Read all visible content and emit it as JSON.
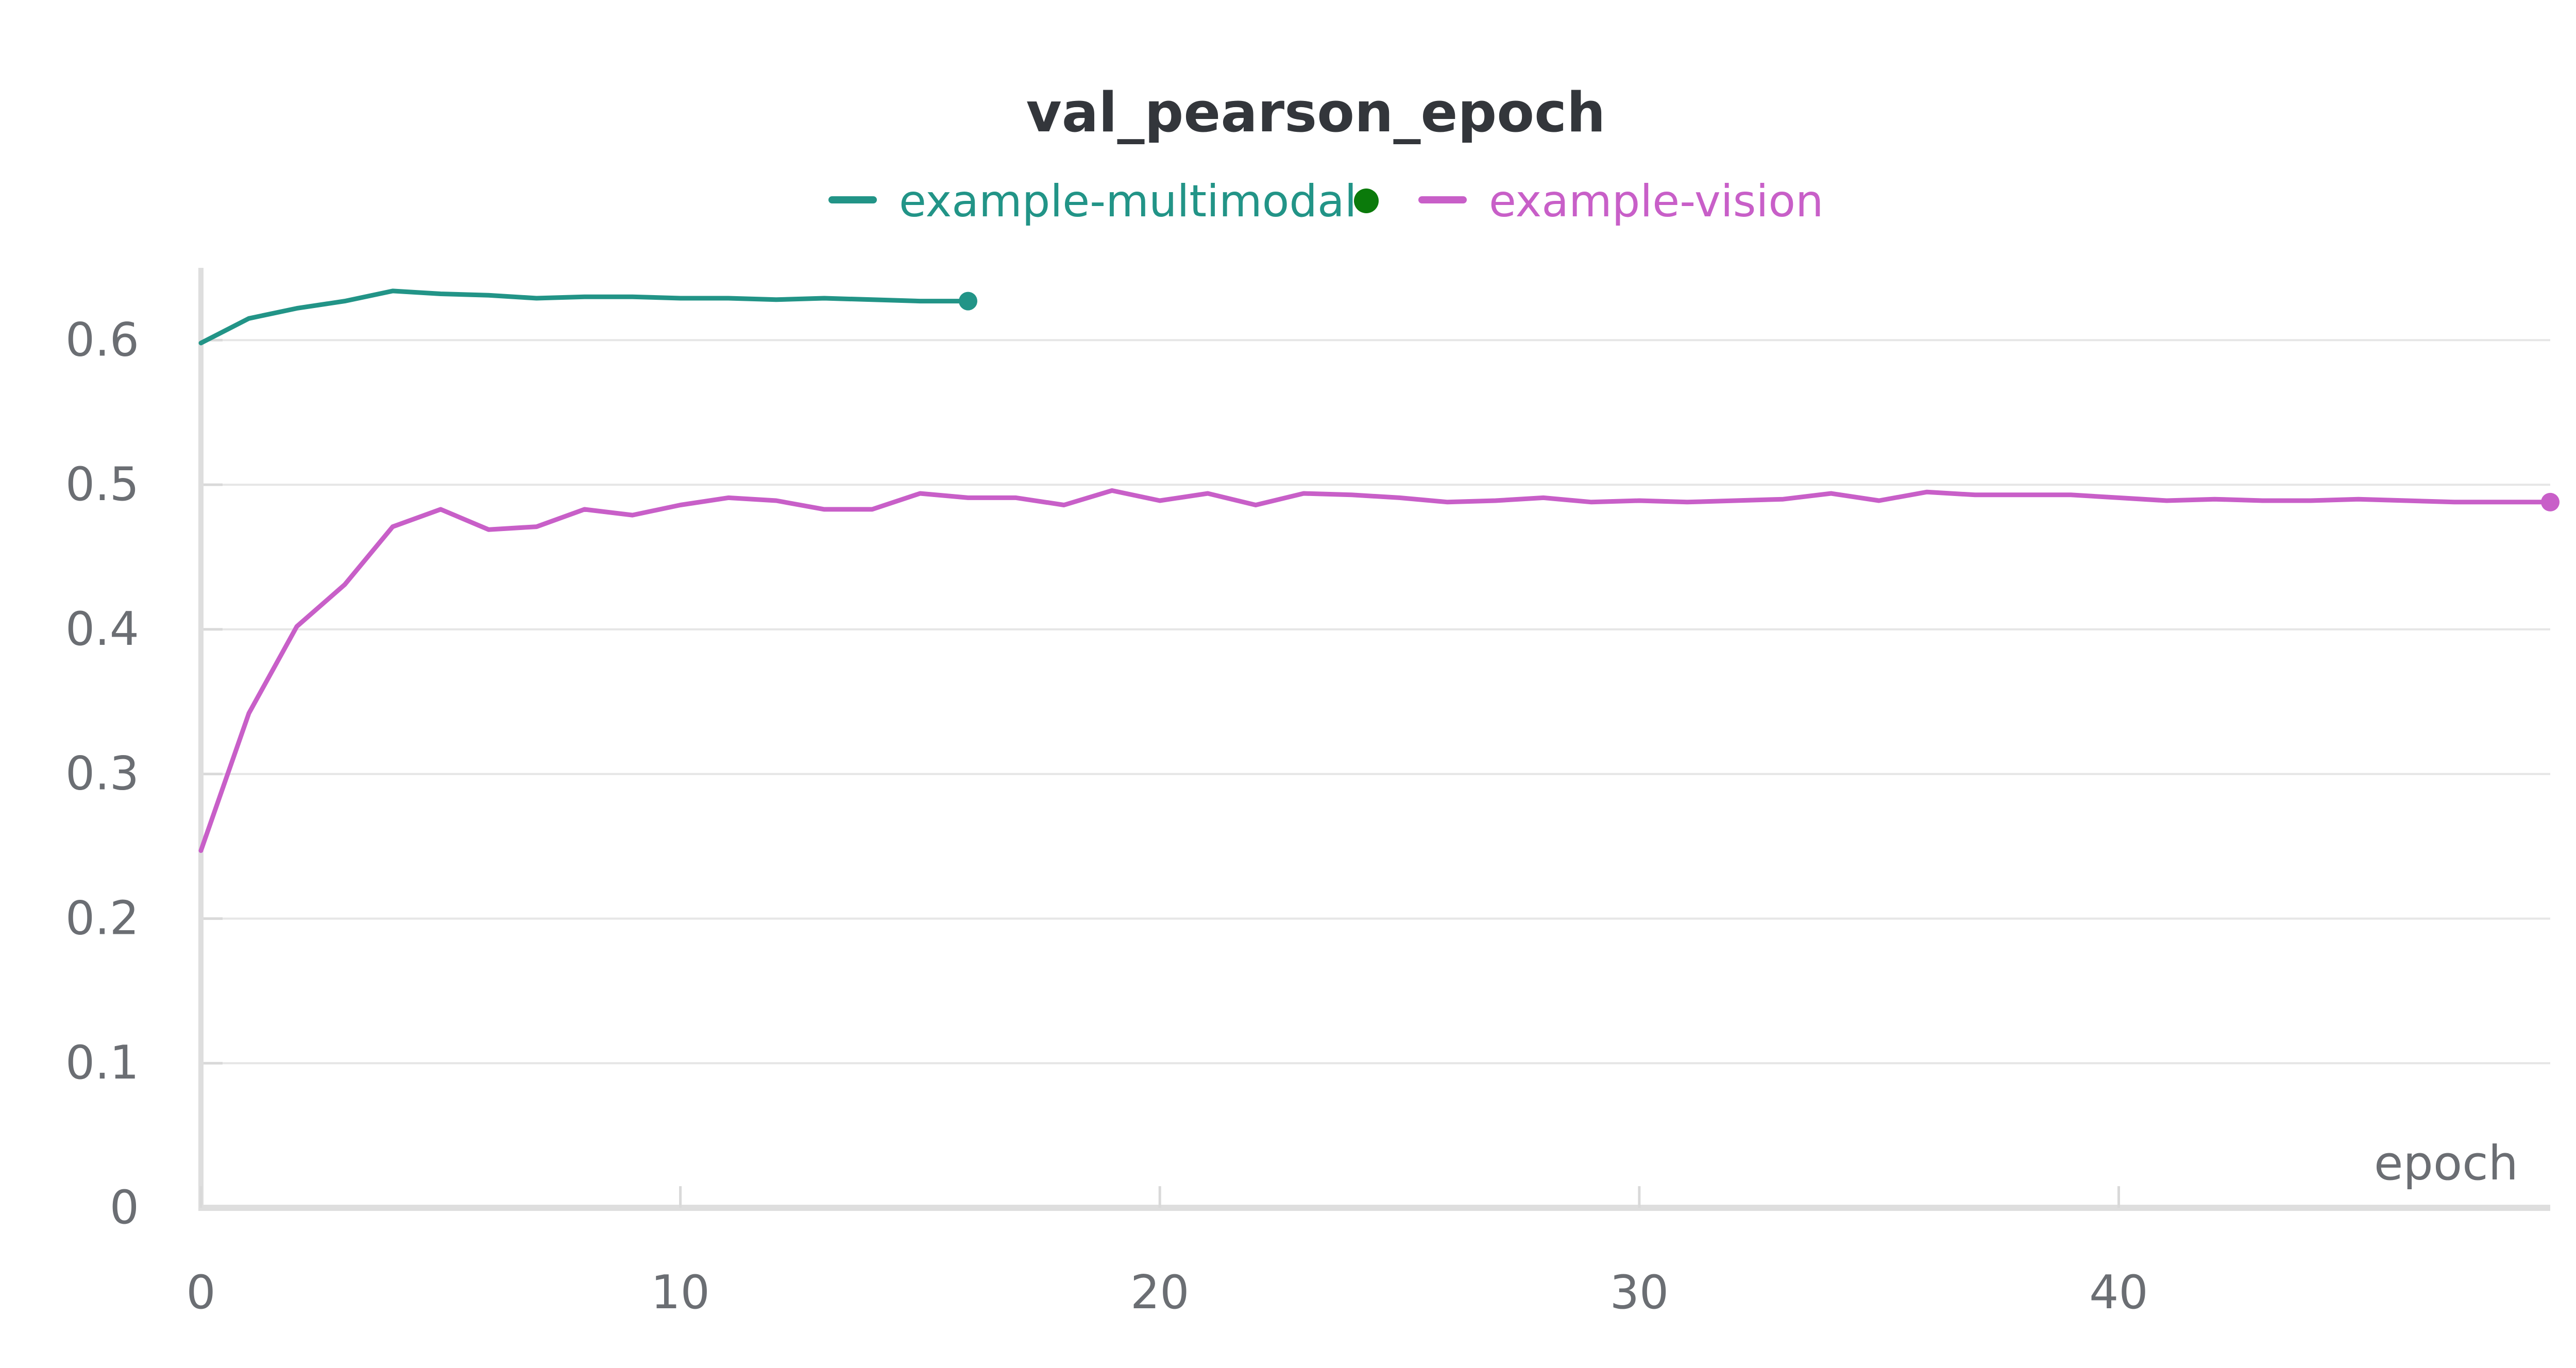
{
  "chart_data": {
    "type": "line",
    "title": "val_pearson_epoch",
    "xlabel": "epoch",
    "ylabel": "",
    "xlim": [
      0,
      49
    ],
    "ylim": [
      0,
      0.65
    ],
    "x_ticks": [
      0,
      10,
      20,
      30,
      40
    ],
    "y_ticks": [
      0,
      0.1,
      0.2,
      0.3,
      0.4,
      0.5,
      0.6
    ],
    "x_tick_labels": [
      "0",
      "10",
      "20",
      "30",
      "40"
    ],
    "y_tick_labels": [
      "0",
      "0.1",
      "0.2",
      "0.3",
      "0.4",
      "0.5",
      "0.6"
    ],
    "grid": true,
    "legend_position": "top-center",
    "series": [
      {
        "name": "example-multimodal",
        "color": "#229487",
        "legend_marker_color": "#0b7a0b",
        "x": [
          0,
          1,
          2,
          3,
          4,
          5,
          6,
          7,
          8,
          9,
          10,
          11,
          12,
          13,
          14,
          15,
          16
        ],
        "values": [
          0.598,
          0.615,
          0.622,
          0.627,
          0.634,
          0.632,
          0.631,
          0.629,
          0.63,
          0.63,
          0.629,
          0.629,
          0.628,
          0.629,
          0.628,
          0.627,
          0.627
        ]
      },
      {
        "name": "example-vision",
        "color": "#c85fc8",
        "x": [
          0,
          1,
          2,
          3,
          4,
          5,
          6,
          7,
          8,
          9,
          10,
          11,
          12,
          13,
          14,
          15,
          16,
          17,
          18,
          19,
          20,
          21,
          22,
          23,
          24,
          25,
          26,
          27,
          28,
          29,
          30,
          31,
          32,
          33,
          34,
          35,
          36,
          37,
          38,
          39,
          40,
          41,
          42,
          43,
          44,
          45,
          46,
          47,
          48,
          49
        ],
        "values": [
          0.247,
          0.342,
          0.402,
          0.431,
          0.471,
          0.483,
          0.469,
          0.471,
          0.483,
          0.479,
          0.486,
          0.491,
          0.489,
          0.483,
          0.483,
          0.494,
          0.491,
          0.491,
          0.486,
          0.496,
          0.489,
          0.494,
          0.486,
          0.494,
          0.493,
          0.491,
          0.488,
          0.489,
          0.491,
          0.488,
          0.489,
          0.488,
          0.489,
          0.49,
          0.494,
          0.489,
          0.495,
          0.493,
          0.493,
          0.493,
          0.491,
          0.489,
          0.49,
          0.489,
          0.489,
          0.49,
          0.489,
          0.488,
          0.488,
          0.488
        ]
      }
    ]
  }
}
